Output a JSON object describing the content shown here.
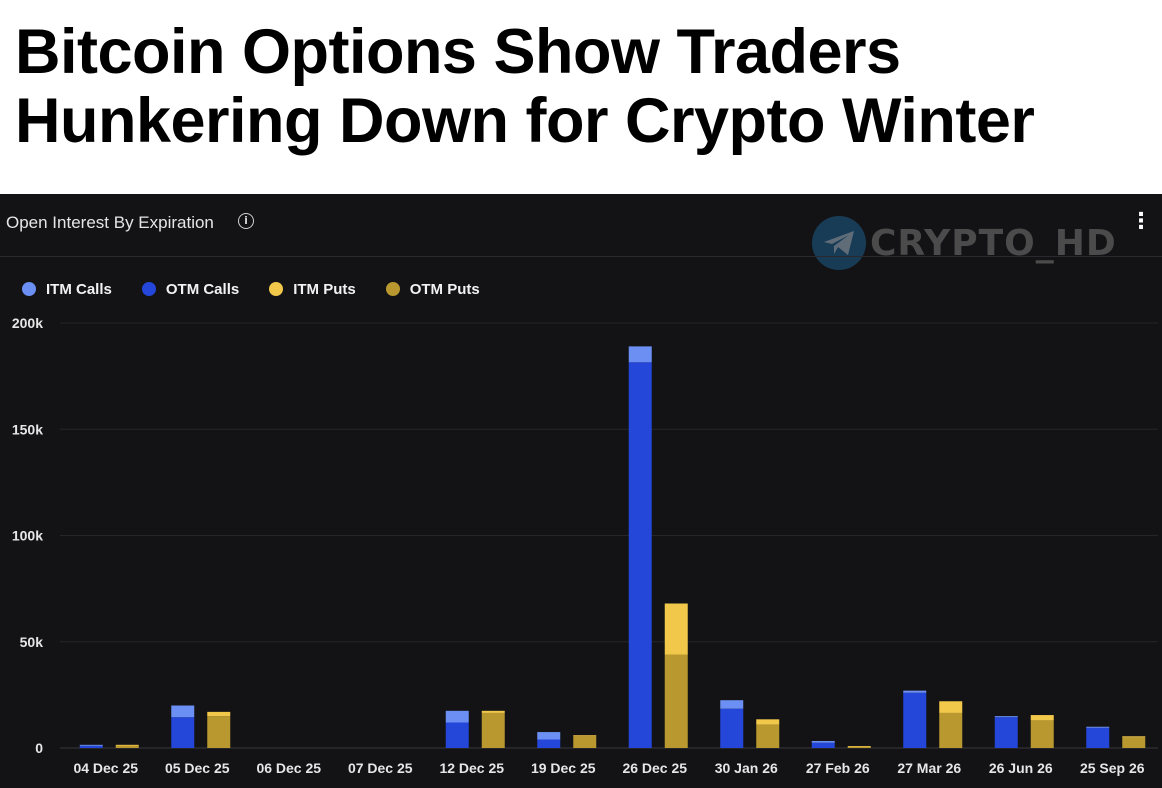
{
  "headline": {
    "line1": "Bitcoin Options Show Traders",
    "line2": "Hunkering Down for Crypto Winter"
  },
  "panel": {
    "title": "Open Interest By Expiration",
    "info_icon": "info-icon",
    "menu_icon": "more-vertical-icon",
    "watermark_text": "CRYPTO_HD",
    "watermark_icon": "telegram-icon"
  },
  "colors": {
    "itm_calls": "#6b8ff2",
    "otm_calls": "#2446d9",
    "itm_puts": "#f2c84b",
    "otm_puts": "#b8982f",
    "background": "#131315",
    "grid": "#26262a"
  },
  "chart_data": {
    "type": "bar",
    "stacked": true,
    "title": "Open Interest By Expiration",
    "categories": [
      "04 Dec 25",
      "05 Dec 25",
      "06 Dec 25",
      "07 Dec 25",
      "12 Dec 25",
      "19 Dec 25",
      "26 Dec 25",
      "30 Jan 26",
      "27 Feb 26",
      "27 Mar 26",
      "26 Jun 26",
      "25 Sep 26"
    ],
    "stacks": [
      {
        "group": "calls",
        "series": [
          {
            "name": "OTM Calls",
            "values": [
              1000,
              14500,
              0,
              0,
              12000,
              4000,
              181500,
              18500,
              2500,
              26000,
              14500,
              9500
            ]
          },
          {
            "name": "ITM Calls",
            "values": [
              500,
              5500,
              0,
              0,
              5500,
              3500,
              7500,
              4000,
              800,
              1000,
              500,
              500
            ]
          }
        ]
      },
      {
        "group": "puts",
        "series": [
          {
            "name": "OTM Puts",
            "values": [
              1200,
              15000,
              0,
              0,
              16500,
              5500,
              44000,
              11000,
              700,
              16500,
              13000,
              5000
            ]
          },
          {
            "name": "ITM Puts",
            "values": [
              300,
              2000,
              0,
              0,
              1000,
              500,
              24000,
              2500,
              200,
              5500,
              2500,
              500
            ]
          }
        ]
      }
    ],
    "yticks": [
      "0",
      "50k",
      "100k",
      "150k",
      "200k"
    ],
    "ylim": [
      0,
      200000
    ],
    "grid": true,
    "legend": {
      "position": "top-left",
      "entries": [
        "ITM Calls",
        "OTM Calls",
        "ITM Puts",
        "OTM Puts"
      ]
    }
  }
}
